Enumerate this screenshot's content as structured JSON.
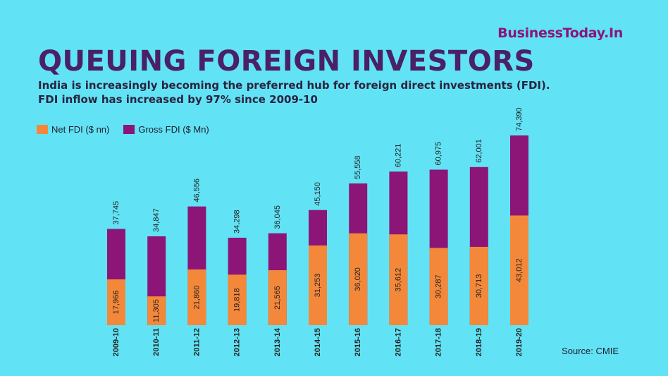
{
  "brand": "BusinessToday.In",
  "title": "QUEUING FOREIGN INVESTORS",
  "subtitle_line1": "India is increasingly becoming the preferred hub for foreign direct investments (FDI).",
  "subtitle_line2": "FDI inflow has increased by 97% since 2009-10",
  "source": "Source: CMIE",
  "colors": {
    "net": "#f4883a",
    "gross": "#8b1677",
    "background": "#62e3f5"
  },
  "chart_data": {
    "type": "bar",
    "stacked": "overlay",
    "title": "QUEUING FOREIGN INVESTORS",
    "categories": [
      "2009-10",
      "2010-11",
      "2011-12",
      "2012-13",
      "2013-14",
      "2014-15",
      "2015-16",
      "2016-17",
      "2017-18",
      "2018-19",
      "2019-20"
    ],
    "series": [
      {
        "name": "Net FDI ($ nn)",
        "color": "#f4883a",
        "values": [
          17966,
          11305,
          21860,
          19818,
          21565,
          31253,
          36020,
          35612,
          30287,
          30713,
          43012
        ],
        "labels": [
          "17,966",
          "11,305",
          "21,860",
          "19,818",
          "21,565",
          "31,253",
          "36,020",
          "35,612",
          "30,287",
          "30,713",
          "43,012"
        ]
      },
      {
        "name": "Gross FDI ($ Mn)",
        "color": "#8b1677",
        "values": [
          37745,
          34847,
          46556,
          34298,
          36045,
          45150,
          55558,
          60221,
          60975,
          62001,
          74390
        ],
        "labels": [
          "37,745",
          "34,847",
          "46,556",
          "34,298",
          "36,045",
          "45,150",
          "55,558",
          "60,221",
          "60,975",
          "62,001",
          "74,390"
        ]
      }
    ],
    "ylim": [
      0,
      80000
    ],
    "grid": false,
    "legend": "top-left"
  }
}
